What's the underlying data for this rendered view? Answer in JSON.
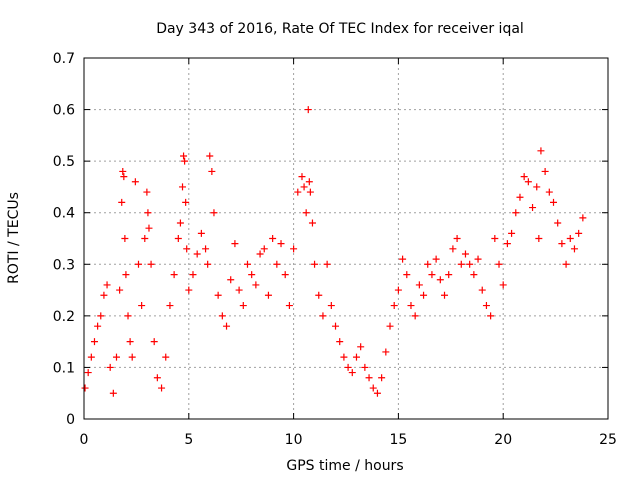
{
  "chart_data": {
    "type": "scatter",
    "title": "Day 343 of 2016, Rate Of TEC Index for receiver iqal",
    "xlabel": "GPS time / hours",
    "ylabel": "ROTI / TECUs",
    "xlim": [
      0,
      25
    ],
    "ylim": [
      0,
      0.7
    ],
    "xticks": [
      0,
      5,
      10,
      15,
      20,
      25
    ],
    "yticks": [
      0,
      0.1,
      0.2,
      0.3,
      0.4,
      0.5,
      0.6,
      0.7
    ],
    "xtick_labels": [
      "0",
      "5",
      "10",
      "15",
      "20",
      "25"
    ],
    "ytick_labels": [
      "0",
      "0.1",
      "0.2",
      "0.3",
      "0.4",
      "0.5",
      "0.6",
      "0.7"
    ],
    "grid": true,
    "marker": "plus",
    "colors": {
      "series": "#ff0000",
      "grid": "#a0a0a0",
      "axis": "#000000"
    },
    "series": [
      {
        "name": "ROTI",
        "x": [
          0.05,
          0.2,
          0.35,
          0.5,
          0.65,
          0.8,
          0.95,
          1.1,
          1.25,
          1.4,
          1.55,
          1.7,
          1.8,
          1.85,
          1.9,
          1.95,
          2.0,
          2.1,
          2.2,
          2.3,
          2.45,
          2.6,
          2.75,
          2.9,
          3.0,
          3.05,
          3.1,
          3.2,
          3.35,
          3.5,
          3.7,
          3.9,
          4.1,
          4.3,
          4.5,
          4.6,
          4.7,
          4.75,
          4.8,
          4.85,
          4.9,
          5.0,
          5.2,
          5.4,
          5.6,
          5.8,
          5.9,
          6.0,
          6.1,
          6.2,
          6.4,
          6.6,
          6.8,
          7.0,
          7.2,
          7.4,
          7.6,
          7.8,
          8.0,
          8.2,
          8.4,
          8.6,
          8.8,
          9.0,
          9.2,
          9.4,
          9.6,
          9.8,
          10.0,
          10.2,
          10.4,
          10.5,
          10.6,
          10.7,
          10.75,
          10.8,
          10.9,
          11.0,
          11.2,
          11.4,
          11.6,
          11.8,
          12.0,
          12.2,
          12.4,
          12.6,
          12.8,
          13.0,
          13.2,
          13.4,
          13.6,
          13.8,
          14.0,
          14.2,
          14.4,
          14.6,
          14.8,
          15.0,
          15.2,
          15.4,
          15.6,
          15.8,
          16.0,
          16.2,
          16.4,
          16.6,
          16.8,
          17.0,
          17.2,
          17.4,
          17.6,
          17.8,
          18.0,
          18.2,
          18.4,
          18.6,
          18.8,
          19.0,
          19.2,
          19.4,
          19.6,
          19.8,
          20.0,
          20.2,
          20.4,
          20.6,
          20.8,
          21.0,
          21.2,
          21.4,
          21.6,
          21.7,
          21.8,
          22.0,
          22.2,
          22.4,
          22.6,
          22.8,
          23.0,
          23.2,
          23.4,
          23.6,
          23.8
        ],
        "y": [
          0.06,
          0.09,
          0.12,
          0.15,
          0.18,
          0.2,
          0.24,
          0.26,
          0.1,
          0.05,
          0.12,
          0.25,
          0.42,
          0.48,
          0.47,
          0.35,
          0.28,
          0.2,
          0.15,
          0.12,
          0.46,
          0.3,
          0.22,
          0.35,
          0.44,
          0.4,
          0.37,
          0.3,
          0.15,
          0.08,
          0.06,
          0.12,
          0.22,
          0.28,
          0.35,
          0.38,
          0.45,
          0.51,
          0.5,
          0.42,
          0.33,
          0.25,
          0.28,
          0.32,
          0.36,
          0.33,
          0.3,
          0.51,
          0.48,
          0.4,
          0.24,
          0.2,
          0.18,
          0.27,
          0.34,
          0.25,
          0.22,
          0.3,
          0.28,
          0.26,
          0.32,
          0.33,
          0.24,
          0.35,
          0.3,
          0.34,
          0.28,
          0.22,
          0.33,
          0.44,
          0.47,
          0.45,
          0.4,
          0.6,
          0.46,
          0.44,
          0.38,
          0.3,
          0.24,
          0.2,
          0.3,
          0.22,
          0.18,
          0.15,
          0.12,
          0.1,
          0.09,
          0.12,
          0.14,
          0.1,
          0.08,
          0.06,
          0.05,
          0.08,
          0.13,
          0.18,
          0.22,
          0.25,
          0.31,
          0.28,
          0.22,
          0.2,
          0.26,
          0.24,
          0.3,
          0.28,
          0.31,
          0.27,
          0.24,
          0.28,
          0.33,
          0.35,
          0.3,
          0.32,
          0.3,
          0.28,
          0.31,
          0.25,
          0.22,
          0.2,
          0.35,
          0.3,
          0.26,
          0.34,
          0.36,
          0.4,
          0.43,
          0.47,
          0.46,
          0.41,
          0.45,
          0.35,
          0.52,
          0.48,
          0.44,
          0.42,
          0.38,
          0.34,
          0.3,
          0.35,
          0.33,
          0.36,
          0.39
        ]
      }
    ]
  }
}
